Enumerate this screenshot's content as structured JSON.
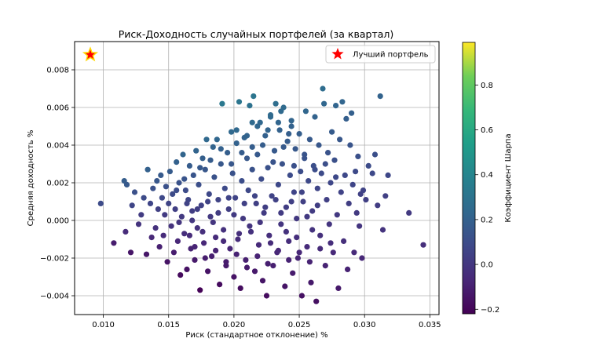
{
  "chart_data": {
    "type": "scatter",
    "title": "Риск-Доходность случайных портфелей (за квартал)",
    "xlabel": "Риск (стандартное отклонение) %",
    "ylabel": "Средняя доходность %",
    "xlim": [
      0.0078,
      0.0357
    ],
    "ylim": [
      -0.005,
      0.0095
    ],
    "xticks": [
      0.01,
      0.015,
      0.02,
      0.025,
      0.03,
      0.035
    ],
    "xtick_labels": [
      "0.010",
      "0.015",
      "0.020",
      "0.025",
      "0.030",
      "0.035"
    ],
    "yticks": [
      -0.004,
      -0.002,
      0.0,
      0.002,
      0.004,
      0.006,
      0.008
    ],
    "ytick_labels": [
      "−0.004",
      "−0.002",
      "0.000",
      "0.002",
      "0.004",
      "0.006",
      "0.008"
    ],
    "grid": true,
    "legend_position": "upper-right",
    "legend_label": "Лучший портфель",
    "best_portfolio": {
      "x": 0.009,
      "y": 0.0088,
      "color": "#ff0000",
      "edge_color": "#ffd700"
    },
    "colorbar": {
      "label": "Коэффициент Шарпа",
      "range": [
        -0.22,
        0.99
      ],
      "ticks": [
        -0.2,
        0.0,
        0.2,
        0.4,
        0.6,
        0.8
      ],
      "tick_labels": [
        "−0.2",
        "0.0",
        "0.2",
        "0.4",
        "0.6",
        "0.8"
      ],
      "colormap": "viridis"
    },
    "points": [
      [
        0.0098,
        0.0009
      ],
      [
        0.0108,
        -0.0012
      ],
      [
        0.0116,
        0.0021
      ],
      [
        0.0118,
        0.0019
      ],
      [
        0.0117,
        -0.0006
      ],
      [
        0.0121,
        -0.0017
      ],
      [
        0.0122,
        0.0008
      ],
      [
        0.0124,
        0.0015
      ],
      [
        0.0127,
        -0.0002
      ],
      [
        0.0129,
        0.0003
      ],
      [
        0.0131,
        0.0012
      ],
      [
        0.0133,
        -0.0018
      ],
      [
        0.0134,
        0.0027
      ],
      [
        0.0136,
        0.0009
      ],
      [
        0.0137,
        -0.0009
      ],
      [
        0.0138,
        0.0017
      ],
      [
        0.014,
        -0.0004
      ],
      [
        0.0141,
        0.0021
      ],
      [
        0.0142,
        0.0006
      ],
      [
        0.0143,
        -0.0014
      ],
      [
        0.0144,
        0.0024
      ],
      [
        0.0145,
        0.0012
      ],
      [
        0.0146,
        -0.0008
      ],
      [
        0.0147,
        0.0003
      ],
      [
        0.0148,
        0.0018
      ],
      [
        0.0149,
        -0.0022
      ],
      [
        0.015,
        0.0009
      ],
      [
        0.0151,
        0.0026
      ],
      [
        0.0152,
        -0.0003
      ],
      [
        0.0153,
        0.0014
      ],
      [
        0.0154,
        -0.0017
      ],
      [
        0.0155,
        0.0006
      ],
      [
        0.0156,
        0.0031
      ],
      [
        0.0157,
        -0.0011
      ],
      [
        0.0158,
        0.002
      ],
      [
        0.0159,
        -0.0029
      ],
      [
        0.016,
        0.0002
      ],
      [
        0.0161,
        0.0035
      ],
      [
        0.0162,
        -0.0007
      ],
      [
        0.0163,
        0.0016
      ],
      [
        0.0164,
        -0.0026
      ],
      [
        0.0165,
        0.0011
      ],
      [
        0.0166,
        0.0029
      ],
      [
        0.0167,
        -0.0015
      ],
      [
        0.0168,
        0.0005
      ],
      [
        0.0169,
        0.0024
      ],
      [
        0.017,
        -0.0021
      ],
      [
        0.0171,
        0.0037
      ],
      [
        0.0172,
        -0.0004
      ],
      [
        0.0173,
        0.0019
      ],
      [
        0.0174,
        -0.0037
      ],
      [
        0.0175,
        0.0008
      ],
      [
        0.0176,
        0.0033
      ],
      [
        0.0177,
        -0.0012
      ],
      [
        0.0178,
        0.0027
      ],
      [
        0.0179,
        0.0043
      ],
      [
        0.018,
        -0.0027
      ],
      [
        0.0181,
        0.0014
      ],
      [
        0.0182,
        0.0002
      ],
      [
        0.0183,
        -0.0019
      ],
      [
        0.0184,
        0.0039
      ],
      [
        0.0185,
        0.0023
      ],
      [
        0.0186,
        -0.0009
      ],
      [
        0.0187,
        0.0043
      ],
      [
        0.0188,
        0.0011
      ],
      [
        0.0189,
        -0.0034
      ],
      [
        0.019,
        0.003
      ],
      [
        0.0191,
        0.0062
      ],
      [
        0.0192,
        -0.0005
      ],
      [
        0.0193,
        0.0017
      ],
      [
        0.0194,
        -0.0024
      ],
      [
        0.0195,
        0.0036
      ],
      [
        0.0196,
        0.0006
      ],
      [
        0.0197,
        -0.0015
      ],
      [
        0.0198,
        0.0047
      ],
      [
        0.0199,
        0.0025
      ],
      [
        0.02,
        -0.003
      ],
      [
        0.0201,
        0.0012
      ],
      [
        0.0202,
        0.0041
      ],
      [
        0.0203,
        -0.001
      ],
      [
        0.0204,
        0.0063
      ],
      [
        0.0205,
        -0.0036
      ],
      [
        0.0206,
        0.0021
      ],
      [
        0.0207,
        0.0001
      ],
      [
        0.0208,
        0.0044
      ],
      [
        0.0209,
        -0.0021
      ],
      [
        0.021,
        0.0033
      ],
      [
        0.0211,
        0.0016
      ],
      [
        0.0212,
        0.0061
      ],
      [
        0.0213,
        -0.0006
      ],
      [
        0.0214,
        0.0039
      ],
      [
        0.0215,
        0.0066
      ],
      [
        0.0216,
        -0.0027
      ],
      [
        0.0217,
        0.0009
      ],
      [
        0.0218,
        0.0035
      ],
      [
        0.0219,
        -0.0013
      ],
      [
        0.022,
        0.0052
      ],
      [
        0.0221,
        0.0022
      ],
      [
        0.0222,
        -0.0032
      ],
      [
        0.0223,
        0.0004
      ],
      [
        0.0224,
        0.0045
      ],
      [
        0.0225,
        -0.004
      ],
      [
        0.0226,
        0.0028
      ],
      [
        0.0227,
        -0.0008
      ],
      [
        0.0228,
        0.0055
      ],
      [
        0.0229,
        0.0013
      ],
      [
        0.023,
        -0.0024
      ],
      [
        0.0231,
        0.0037
      ],
      [
        0.0232,
        0.0062
      ],
      [
        0.0233,
        -0.0017
      ],
      [
        0.0234,
        0.0019
      ],
      [
        0.0235,
        0.0048
      ],
      [
        0.0236,
        -0.0002
      ],
      [
        0.0237,
        0.003
      ],
      [
        0.0238,
        0.006
      ],
      [
        0.0239,
        -0.0035
      ],
      [
        0.024,
        0.0007
      ],
      [
        0.0241,
        0.0042
      ],
      [
        0.0242,
        -0.0011
      ],
      [
        0.0243,
        0.0024
      ],
      [
        0.0244,
        0.0053
      ],
      [
        0.0245,
        -0.0028
      ],
      [
        0.0246,
        0.0015
      ],
      [
        0.0247,
        0.0038
      ],
      [
        0.0248,
        0.0001
      ],
      [
        0.0249,
        -0.002
      ],
      [
        0.025,
        0.0046
      ],
      [
        0.0251,
        0.0026
      ],
      [
        0.0252,
        -0.004
      ],
      [
        0.0253,
        0.001
      ],
      [
        0.0254,
        0.0035
      ],
      [
        0.0255,
        0.0058
      ],
      [
        0.0256,
        -0.0014
      ],
      [
        0.0257,
        0.0021
      ],
      [
        0.0258,
        0.0043
      ],
      [
        0.0259,
        -0.0033
      ],
      [
        0.026,
        0.0005
      ],
      [
        0.0261,
        0.0029
      ],
      [
        0.0262,
        0.0055
      ],
      [
        0.0263,
        -0.0043
      ],
      [
        0.0264,
        0.0017
      ],
      [
        0.0265,
        0.004
      ],
      [
        0.0266,
        -0.0008
      ],
      [
        0.0267,
        0.0025
      ],
      [
        0.0268,
        0.007
      ],
      [
        0.0269,
        0.0062
      ],
      [
        0.027,
        -0.0024
      ],
      [
        0.0271,
        0.0011
      ],
      [
        0.0272,
        0.0036
      ],
      [
        0.0273,
        -0.0002
      ],
      [
        0.0274,
        0.002
      ],
      [
        0.0275,
        0.0047
      ],
      [
        0.0276,
        -0.0017
      ],
      [
        0.0277,
        0.0032
      ],
      [
        0.0278,
        0.0061
      ],
      [
        0.0279,
        0.0003
      ],
      [
        0.028,
        -0.0036
      ],
      [
        0.0281,
        0.0043
      ],
      [
        0.0282,
        0.0015
      ],
      [
        0.0283,
        0.0063
      ],
      [
        0.0284,
        -0.0011
      ],
      [
        0.0285,
        0.0024
      ],
      [
        0.0286,
        0.0054
      ],
      [
        0.0287,
        -0.0026
      ],
      [
        0.0288,
        0.0009
      ],
      [
        0.0289,
        0.004
      ],
      [
        0.029,
        0.0057
      ],
      [
        0.0291,
        0.0019
      ],
      [
        0.0292,
        -0.0017
      ],
      [
        0.0293,
        0.0026
      ],
      [
        0.0294,
        0.0004
      ],
      [
        0.0295,
        0.0034
      ],
      [
        0.0296,
        -0.0003
      ],
      [
        0.0297,
        0.0014
      ],
      [
        0.0298,
        -0.002
      ],
      [
        0.0299,
        0.0016
      ],
      [
        0.0301,
        0.0011
      ],
      [
        0.0303,
        0.0029
      ],
      [
        0.0306,
        0.0025
      ],
      [
        0.0308,
        0.0035
      ],
      [
        0.031,
        0.0008
      ],
      [
        0.0312,
        0.0066
      ],
      [
        0.0314,
        -0.0005
      ],
      [
        0.0316,
        0.0013
      ],
      [
        0.0318,
        0.0024
      ],
      [
        0.0334,
        0.0004
      ],
      [
        0.0345,
        -0.0013
      ],
      [
        0.0168,
        0.0
      ],
      [
        0.0172,
        0.0006
      ],
      [
        0.0176,
        -0.0006
      ],
      [
        0.018,
        0.001
      ],
      [
        0.0184,
        -0.0001
      ],
      [
        0.0188,
        0.0004
      ],
      [
        0.0192,
        -0.0011
      ],
      [
        0.0196,
        0.0012
      ],
      [
        0.02,
        0.0003
      ],
      [
        0.0204,
        -0.0007
      ],
      [
        0.0208,
        0.0009
      ],
      [
        0.0212,
        -0.0003
      ],
      [
        0.0216,
        0.0013
      ],
      [
        0.022,
        -0.0001
      ],
      [
        0.0224,
        0.0007
      ],
      [
        0.0228,
        -0.0012
      ],
      [
        0.0232,
        0.0011
      ],
      [
        0.0236,
        0.0004
      ],
      [
        0.024,
        -0.0006
      ],
      [
        0.0244,
        0.001
      ],
      [
        0.0248,
        -0.0009
      ],
      [
        0.0252,
        0.0015
      ],
      [
        0.0256,
        0.0002
      ],
      [
        0.026,
        -0.0005
      ],
      [
        0.0264,
        0.0008
      ],
      [
        0.0174,
        0.0028
      ],
      [
        0.0182,
        0.0032
      ],
      [
        0.019,
        0.0038
      ],
      [
        0.0198,
        0.003
      ],
      [
        0.0206,
        0.0036
      ],
      [
        0.0214,
        0.0027
      ],
      [
        0.0222,
        0.004
      ],
      [
        0.023,
        0.0031
      ],
      [
        0.0238,
        0.0039
      ],
      [
        0.0246,
        0.0029
      ],
      [
        0.0254,
        0.0033
      ],
      [
        0.0262,
        0.0027
      ],
      [
        0.027,
        0.003
      ],
      [
        0.0278,
        0.0023
      ],
      [
        0.017,
        -0.0014
      ],
      [
        0.0178,
        -0.002
      ],
      [
        0.0186,
        -0.0016
      ],
      [
        0.0194,
        -0.0022
      ],
      [
        0.0202,
        -0.0018
      ],
      [
        0.021,
        -0.0025
      ],
      [
        0.0218,
        -0.0019
      ],
      [
        0.0226,
        -0.0023
      ],
      [
        0.0234,
        -0.0016
      ],
      [
        0.0242,
        -0.0021
      ],
      [
        0.025,
        -0.0017
      ],
      [
        0.0258,
        -0.0022
      ],
      [
        0.0266,
        -0.0015
      ],
      [
        0.0274,
        -0.0012
      ],
      [
        0.0156,
        0.0016
      ],
      [
        0.0162,
        0.0022
      ],
      [
        0.0158,
        -0.0001
      ],
      [
        0.0164,
        0.0009
      ],
      [
        0.0166,
        -0.0008
      ],
      [
        0.021,
        0.0045
      ],
      [
        0.0218,
        0.005
      ],
      [
        0.0226,
        0.0048
      ],
      [
        0.0234,
        0.0052
      ],
      [
        0.0242,
        0.0046
      ],
      [
        0.0228,
        0.0056
      ],
      [
        0.0236,
        0.0058
      ],
      [
        0.0214,
        0.0052
      ],
      [
        0.0244,
        0.005
      ],
      [
        0.0202,
        0.0048
      ]
    ]
  }
}
